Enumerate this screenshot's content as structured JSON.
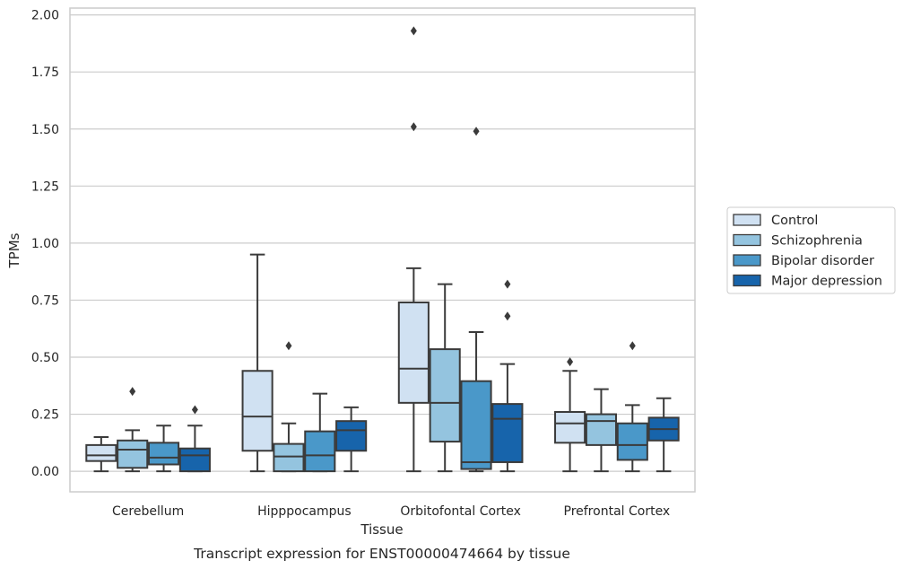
{
  "caption": "Transcript expression for ENST00000474664 by tissue",
  "chart_data": {
    "type": "box",
    "title": "",
    "xlabel": "Tissue",
    "ylabel": "TPMs",
    "ylim": [
      -0.09,
      2.03
    ],
    "yticks": [
      0.0,
      0.25,
      0.5,
      0.75,
      1.0,
      1.25,
      1.5,
      1.75,
      2.0
    ],
    "ytick_labels": [
      "0.00",
      "0.25",
      "0.50",
      "0.75",
      "1.00",
      "1.25",
      "1.50",
      "1.75",
      "2.00"
    ],
    "grid": "horizontal",
    "legend_position": "right, outside plot",
    "categories": [
      "Cerebellum",
      "Hipppocampus",
      "Orbitofontal Cortex",
      "Prefrontal Cortex"
    ],
    "series": [
      {
        "name": "Control",
        "color": "#d0e1f2",
        "boxes": [
          {
            "whislo": 0.0,
            "q1": 0.045,
            "med": 0.07,
            "q3": 0.115,
            "whishi": 0.15,
            "fliers": []
          },
          {
            "whislo": 0.0,
            "q1": 0.09,
            "med": 0.24,
            "q3": 0.44,
            "whishi": 0.95,
            "fliers": []
          },
          {
            "whislo": 0.0,
            "q1": 0.3,
            "med": 0.45,
            "q3": 0.74,
            "whishi": 0.89,
            "fliers": [
              1.51,
              1.93
            ]
          },
          {
            "whislo": 0.0,
            "q1": 0.125,
            "med": 0.21,
            "q3": 0.26,
            "whishi": 0.44,
            "fliers": [
              0.48
            ]
          }
        ]
      },
      {
        "name": "Schizophrenia",
        "color": "#94c4df",
        "boxes": [
          {
            "whislo": 0.0,
            "q1": 0.015,
            "med": 0.095,
            "q3": 0.135,
            "whishi": 0.18,
            "fliers": [
              0.35
            ]
          },
          {
            "whislo": 0.0,
            "q1": 0.0,
            "med": 0.065,
            "q3": 0.12,
            "whishi": 0.21,
            "fliers": [
              0.55
            ]
          },
          {
            "whislo": 0.0,
            "q1": 0.13,
            "med": 0.3,
            "q3": 0.535,
            "whishi": 0.82,
            "fliers": []
          },
          {
            "whislo": 0.0,
            "q1": 0.115,
            "med": 0.22,
            "q3": 0.25,
            "whishi": 0.36,
            "fliers": []
          }
        ]
      },
      {
        "name": "Bipolar disorder",
        "color": "#4a98c9",
        "boxes": [
          {
            "whislo": 0.0,
            "q1": 0.03,
            "med": 0.06,
            "q3": 0.125,
            "whishi": 0.2,
            "fliers": []
          },
          {
            "whislo": 0.0,
            "q1": 0.0,
            "med": 0.07,
            "q3": 0.175,
            "whishi": 0.34,
            "fliers": []
          },
          {
            "whislo": 0.0,
            "q1": 0.01,
            "med": 0.04,
            "q3": 0.395,
            "whishi": 0.61,
            "fliers": [
              1.49
            ]
          },
          {
            "whislo": 0.0,
            "q1": 0.05,
            "med": 0.115,
            "q3": 0.21,
            "whishi": 0.29,
            "fliers": [
              0.55
            ]
          }
        ]
      },
      {
        "name": "Major depression",
        "color": "#1764ab",
        "boxes": [
          {
            "whislo": 0.0,
            "q1": 0.0,
            "med": 0.07,
            "q3": 0.1,
            "whishi": 0.2,
            "fliers": [
              0.27
            ]
          },
          {
            "whislo": 0.0,
            "q1": 0.09,
            "med": 0.18,
            "q3": 0.22,
            "whishi": 0.28,
            "fliers": []
          },
          {
            "whislo": 0.0,
            "q1": 0.04,
            "med": 0.23,
            "q3": 0.295,
            "whishi": 0.47,
            "fliers": [
              0.68,
              0.82
            ]
          },
          {
            "whislo": 0.0,
            "q1": 0.135,
            "med": 0.185,
            "q3": 0.235,
            "whishi": 0.32,
            "fliers": []
          }
        ]
      }
    ]
  }
}
